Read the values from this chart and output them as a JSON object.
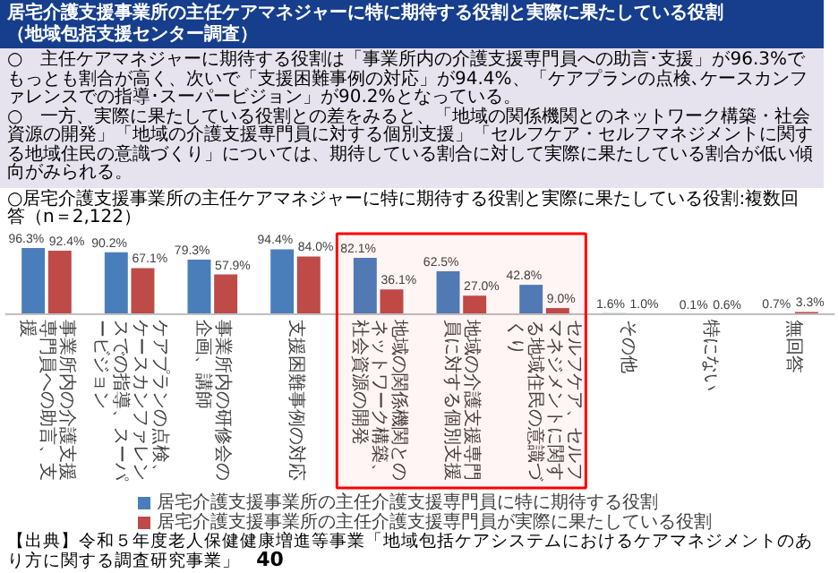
{
  "chart_data": {
    "type": "bar",
    "title": "居宅介護支援事業所の主任ケアマネジャーに特に期待する役割と実際に果たしている役割",
    "subtitle": "（地域包括支援センター調査）",
    "annotations": [
      "○　主任ケアマネジャーに期待する役割は「事業所内の介護支援専門員への助言･支援」が96.3%でもっとも割合が高く、次いで「支援困難事例の対応」が94.4%、「ケアプランの点検､ケースカンファレンスでの指導･スーパービジョン」が90.2%となっている。",
      "○　一方、実際に果たしている役割との差をみると、「地域の関係機関とのネットワーク構築・社会資源の開発」「地域の介護支援専門員に対する個別支援」「セルフケア・セルフマネジメントに関する地域住民の意識づくり」については、期待している割合に対して実際に果たしている割合が低い傾向がみられる。",
      "○居宅介護支援事業所の主任ケアマネジャーに特に期待する役割と実際に果たしている役割:複数回答（n＝2,122）",
      "【出典】令和５年度老人保健健康増進等事業「地域包括ケアシステムにおけるケアマネジメントのあり方に関する調査研究事業」",
      "40"
    ],
    "categories": [
      "事業所内の介護支援専門員への助言、支援",
      "ケアプランの点検、ケースカンファレンスでの指導、スーパービジョン",
      "事業所内の研修会の企画、講師",
      "支援困難事例の対応",
      "地域の関係機関とのネットワーク構築、社会資源の開発",
      "地域の介護支援専門員に対する個別支援",
      "セルフケア、セルフマネジメントに関する地域住民の意識づくり",
      "その他",
      "特にない",
      "無回答"
    ],
    "series": [
      {
        "name": "居宅介護支援事業所の主任介護支援専門員に特に期待する役割",
        "color": "#4a7ebb",
        "values": [
          96.3,
          90.2,
          79.3,
          94.4,
          82.1,
          62.5,
          42.8,
          1.6,
          0.1,
          0.7
        ],
        "value_labels": [
          "96.3%",
          "90.2%",
          "79.3%",
          "94.4%",
          "82.1%",
          "62.5%",
          "42.8%",
          "1.6%",
          "0.1%",
          "0.7%"
        ]
      },
      {
        "name": "居宅介護支援事業所の主任介護支援専門員が実際に果たしている役割",
        "color": "#be4b48",
        "values": [
          92.4,
          67.1,
          57.9,
          84.0,
          36.1,
          27.0,
          9.0,
          1.0,
          0.6,
          3.3
        ],
        "value_labels": [
          "92.4%",
          "67.1%",
          "57.9%",
          "84.0%",
          "36.1%",
          "27.0%",
          "9.0%",
          "1.0%",
          "0.6%",
          "3.3%"
        ]
      }
    ],
    "bands": [
      {
        "axis": "x",
        "from": "地域の関係機関とのネットワーク構築、社会資源の開発",
        "to": "セルフケア、セルフマネジメントに関する地域住民の意識づくり",
        "color": "#ff0000"
      }
    ],
    "legend": "bottom",
    "grid": false
  }
}
